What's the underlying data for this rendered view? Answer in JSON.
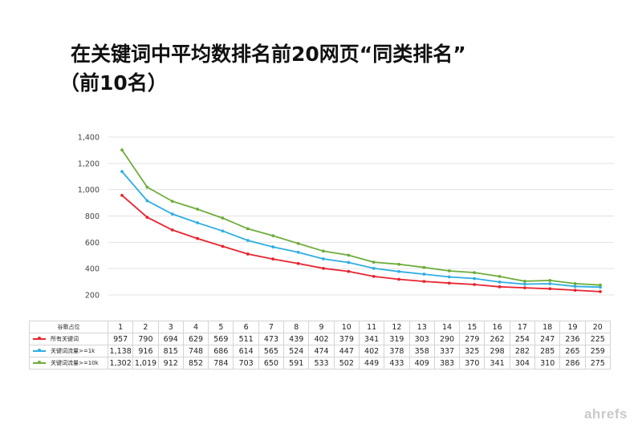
{
  "title": {
    "line1": "在关键词中平均数排名前20网页“同类排名”",
    "line2": "（前10名）"
  },
  "brand": "ahrefs",
  "chart_data": {
    "type": "line",
    "x": [
      1,
      2,
      3,
      4,
      5,
      6,
      7,
      8,
      9,
      10,
      11,
      12,
      13,
      14,
      15,
      16,
      17,
      18,
      19,
      20
    ],
    "ylim": [
      200,
      1400
    ],
    "yticks": [
      200,
      400,
      600,
      800,
      1000,
      1200,
      1400
    ],
    "ytick_labels": [
      "200",
      "400",
      "600",
      "800",
      "1,000",
      "1,200",
      "1,400"
    ],
    "grid": true,
    "table_header_label": "谷歌占位",
    "series": [
      {
        "name": "所有关键词",
        "color": "#e8242f",
        "values": [
          957,
          790,
          694,
          629,
          569,
          511,
          473,
          439,
          402,
          379,
          341,
          319,
          303,
          290,
          279,
          262,
          254,
          247,
          236,
          225
        ],
        "labels": [
          "957",
          "790",
          "694",
          "629",
          "569",
          "511",
          "473",
          "439",
          "402",
          "379",
          "341",
          "319",
          "303",
          "290",
          "279",
          "262",
          "254",
          "247",
          "236",
          "225"
        ]
      },
      {
        "name": "关键词流量>=1k",
        "color": "#2eaee3",
        "values": [
          1138,
          916,
          815,
          748,
          686,
          614,
          565,
          524,
          474,
          447,
          402,
          378,
          358,
          337,
          325,
          298,
          282,
          285,
          265,
          259
        ],
        "labels": [
          "1,138",
          "916",
          "815",
          "748",
          "686",
          "614",
          "565",
          "524",
          "474",
          "447",
          "402",
          "378",
          "358",
          "337",
          "325",
          "298",
          "282",
          "285",
          "265",
          "259"
        ]
      },
      {
        "name": "关键词流量>=10k",
        "color": "#6cad3a",
        "values": [
          1302,
          1019,
          912,
          852,
          784,
          703,
          650,
          591,
          533,
          502,
          449,
          433,
          409,
          383,
          370,
          341,
          304,
          310,
          286,
          275
        ],
        "labels": [
          "1,302",
          "1,019",
          "912",
          "852",
          "784",
          "703",
          "650",
          "591",
          "533",
          "502",
          "449",
          "433",
          "409",
          "383",
          "370",
          "341",
          "304",
          "310",
          "286",
          "275"
        ]
      }
    ]
  }
}
